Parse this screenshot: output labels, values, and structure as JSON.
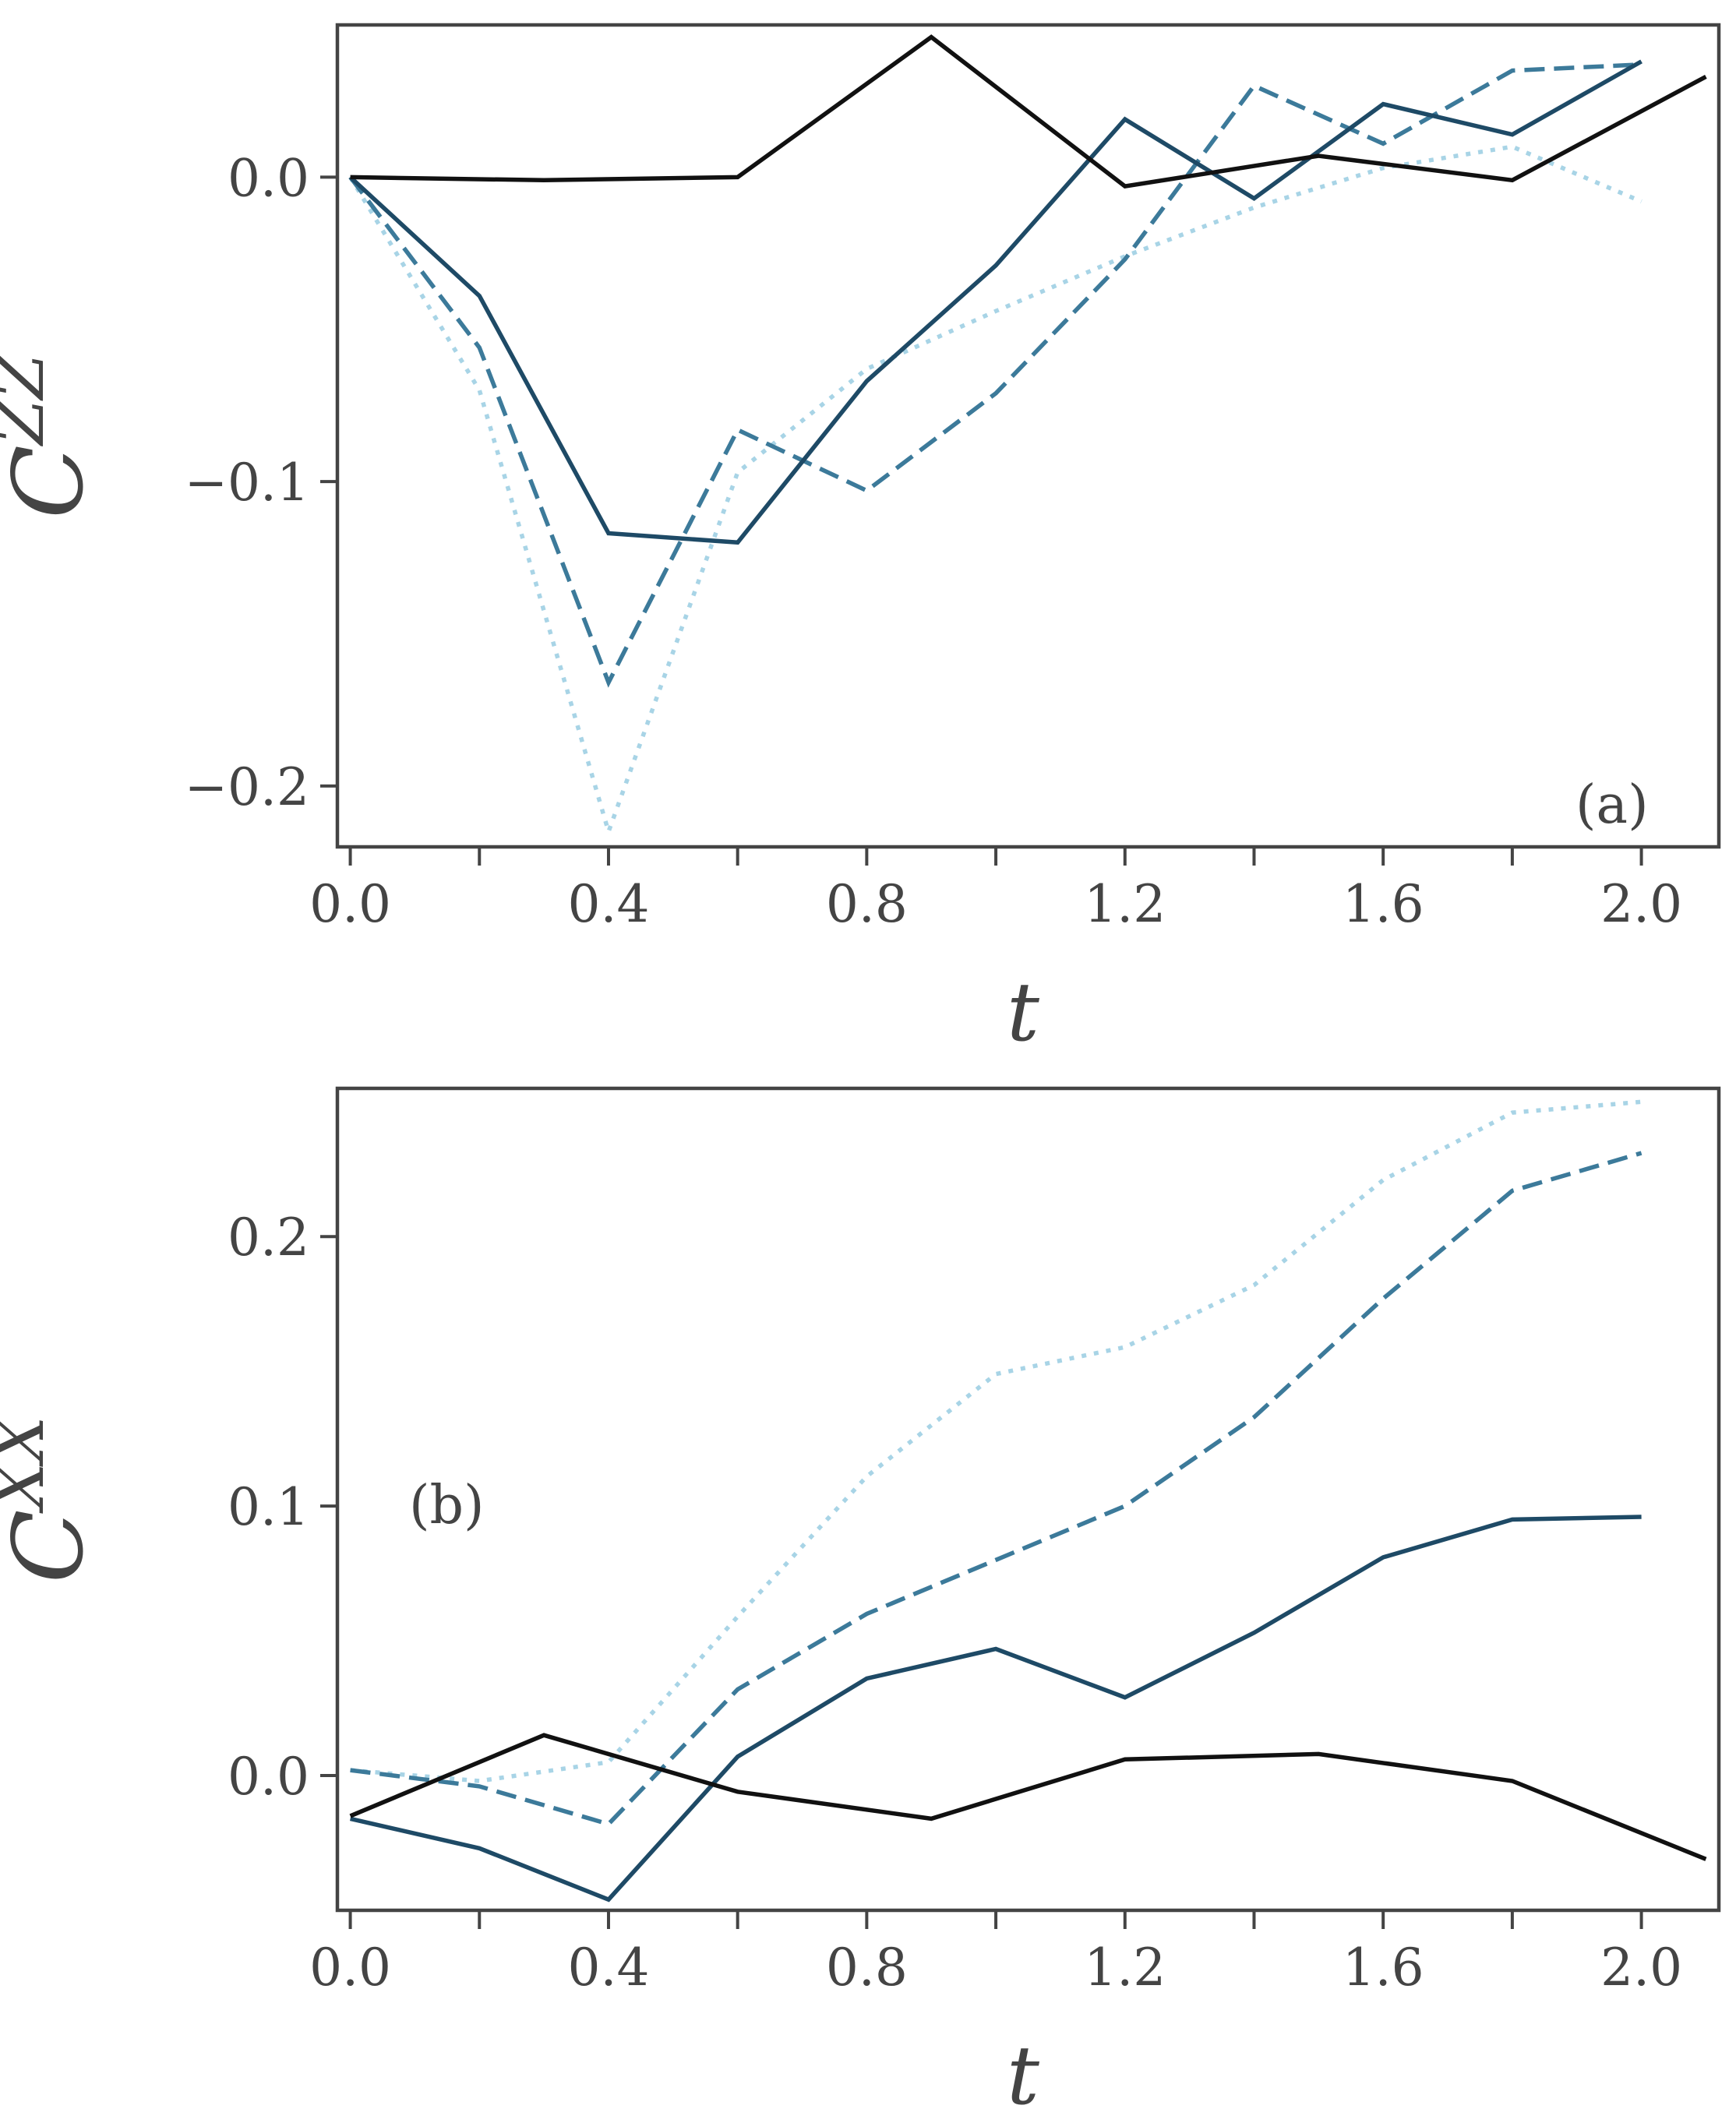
{
  "chart_data": [
    {
      "type": "line",
      "panel_label": "(a)",
      "title": "",
      "xlabel": "t",
      "ylabel": "C",
      "ylabel_sup": "ZZ",
      "xlim": [
        -0.02,
        2.12
      ],
      "ylim": [
        -0.22,
        0.05
      ],
      "xticks": [
        0.0,
        0.2,
        0.4,
        0.6,
        0.8,
        1.0,
        1.2,
        1.4,
        1.6,
        1.8,
        2.0
      ],
      "xtick_labels": [
        "0.0",
        "",
        "0.4",
        "",
        "0.8",
        "",
        "1.2",
        "",
        "1.6",
        "",
        "2.0"
      ],
      "yticks": [
        0.0,
        -0.1,
        -0.2
      ],
      "ytick_labels": [
        "0.0",
        "−0.1",
        "−0.2"
      ],
      "grid": false,
      "series": [
        {
          "name": "black",
          "color": "#111111",
          "dash": "solid",
          "x": [
            0.0,
            0.3,
            0.6,
            0.9,
            1.2,
            1.5,
            1.8,
            2.1
          ],
          "y": [
            0.0,
            -0.001,
            0.0,
            0.046,
            -0.003,
            0.007,
            -0.001,
            0.033
          ]
        },
        {
          "name": "dark-blue",
          "color": "#1e4a66",
          "dash": "solid",
          "x": [
            0.0,
            0.2,
            0.4,
            0.6,
            0.8,
            1.0,
            1.2,
            1.4,
            1.6,
            1.8,
            2.0
          ],
          "y": [
            0.0,
            -0.039,
            -0.117,
            -0.12,
            -0.067,
            -0.029,
            0.019,
            -0.007,
            0.024,
            0.014,
            0.038
          ]
        },
        {
          "name": "mid-blue-dashed",
          "color": "#3c7a9a",
          "dash": "dashed",
          "x": [
            0.0,
            0.2,
            0.4,
            0.6,
            0.8,
            1.0,
            1.2,
            1.4,
            1.6,
            1.8,
            2.0
          ],
          "y": [
            0.0,
            -0.056,
            -0.166,
            -0.083,
            -0.103,
            -0.071,
            -0.027,
            0.03,
            0.011,
            0.035,
            0.037
          ]
        },
        {
          "name": "light-blue-dotted",
          "color": "#a8d4e6",
          "dash": "dotted",
          "x": [
            0.0,
            0.2,
            0.4,
            0.6,
            0.8,
            1.0,
            1.2,
            1.4,
            1.6,
            1.8,
            2.0
          ],
          "y": [
            0.0,
            -0.07,
            -0.215,
            -0.097,
            -0.063,
            -0.044,
            -0.026,
            -0.01,
            0.003,
            0.01,
            -0.008
          ]
        }
      ]
    },
    {
      "type": "line",
      "panel_label": "(b)",
      "title": "",
      "xlabel": "t",
      "ylabel": "C",
      "ylabel_sup": "XX",
      "xlim": [
        -0.02,
        2.12
      ],
      "ylim": [
        -0.05,
        0.255
      ],
      "xticks": [
        0.0,
        0.2,
        0.4,
        0.6,
        0.8,
        1.0,
        1.2,
        1.4,
        1.6,
        1.8,
        2.0
      ],
      "xtick_labels": [
        "0.0",
        "",
        "0.4",
        "",
        "0.8",
        "",
        "1.2",
        "",
        "1.6",
        "",
        "2.0"
      ],
      "yticks": [
        0.0,
        0.1,
        0.2
      ],
      "ytick_labels": [
        "0.0",
        "0.1",
        "0.2"
      ],
      "grid": false,
      "series": [
        {
          "name": "black",
          "color": "#111111",
          "dash": "solid",
          "x": [
            0.0,
            0.3,
            0.6,
            0.9,
            1.2,
            1.5,
            1.8,
            2.1
          ],
          "y": [
            -0.015,
            0.015,
            -0.006,
            -0.016,
            0.006,
            0.008,
            -0.002,
            -0.031
          ]
        },
        {
          "name": "dark-blue",
          "color": "#1e4a66",
          "dash": "solid",
          "x": [
            0.0,
            0.2,
            0.4,
            0.6,
            0.8,
            1.0,
            1.2,
            1.4,
            1.6,
            1.8,
            2.0
          ],
          "y": [
            -0.016,
            -0.027,
            -0.046,
            0.007,
            0.036,
            0.047,
            0.029,
            0.053,
            0.081,
            0.095,
            0.096
          ]
        },
        {
          "name": "mid-blue-dashed",
          "color": "#3c7a9a",
          "dash": "dashed",
          "x": [
            0.0,
            0.2,
            0.4,
            0.6,
            0.8,
            1.0,
            1.2,
            1.4,
            1.6,
            1.8,
            2.0
          ],
          "y": [
            0.002,
            -0.004,
            -0.018,
            0.032,
            0.06,
            0.08,
            0.1,
            0.133,
            0.177,
            0.217,
            0.231
          ]
        },
        {
          "name": "light-blue-dotted",
          "color": "#a8d4e6",
          "dash": "dotted",
          "x": [
            0.0,
            0.2,
            0.4,
            0.6,
            0.8,
            1.0,
            1.2,
            1.4,
            1.6,
            1.8,
            2.0
          ],
          "y": [
            0.002,
            -0.002,
            0.005,
            0.059,
            0.111,
            0.149,
            0.159,
            0.182,
            0.221,
            0.246,
            0.25
          ]
        }
      ]
    }
  ]
}
